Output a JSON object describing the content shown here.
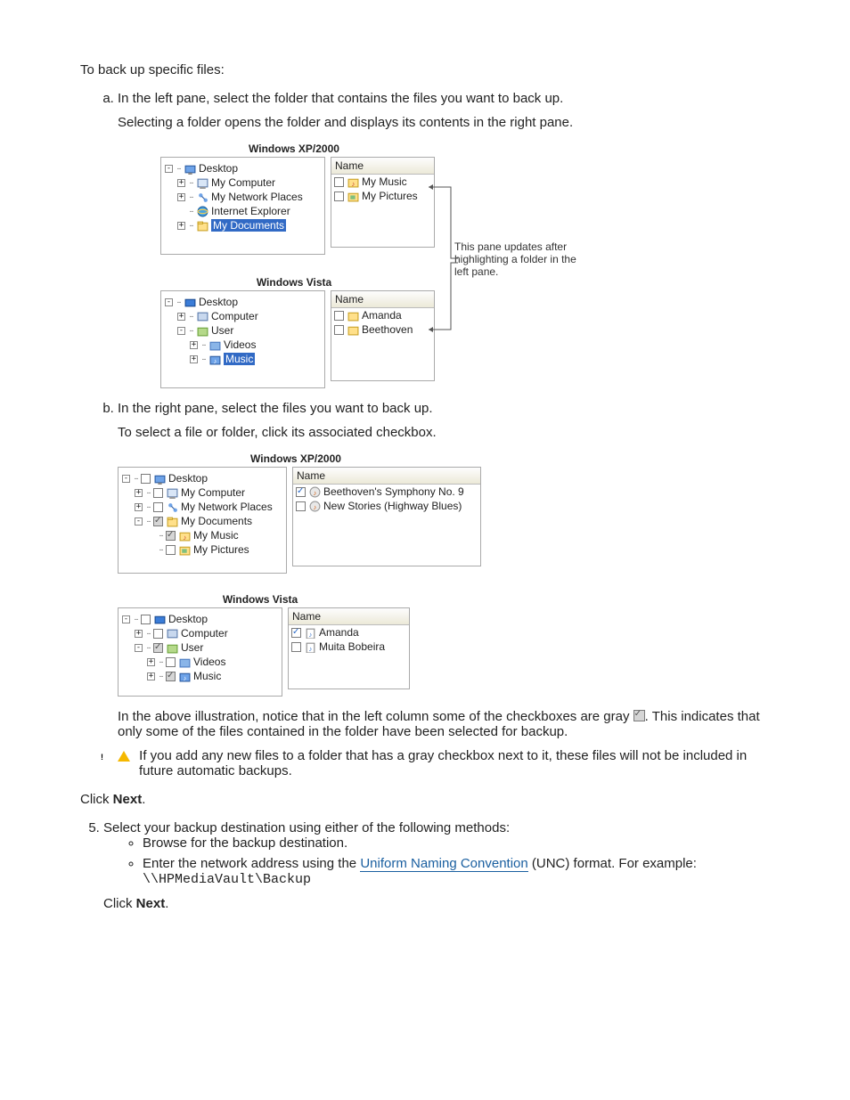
{
  "intro": "To back up specific files:",
  "stepA": {
    "line1": "In the left pane, select the folder that contains the files you want to back up.",
    "line2": "Selecting a folder opens the folder and displays its contents in the right pane."
  },
  "fig1": {
    "titleXP": "Windows XP/2000",
    "titleVista": "Windows Vista",
    "nameHeader": "Name",
    "xp_tree": [
      {
        "exp": "-",
        "icon": "desktop",
        "label": "Desktop",
        "depth": 0
      },
      {
        "exp": "+",
        "icon": "mycomputer",
        "label": "My Computer",
        "depth": 1
      },
      {
        "exp": "+",
        "icon": "network",
        "label": "My Network Places",
        "depth": 1
      },
      {
        "exp": "",
        "icon": "ie",
        "label": "Internet Explorer",
        "depth": 1
      },
      {
        "exp": "+",
        "icon": "mydocs",
        "label": "My Documents",
        "depth": 1,
        "selected": true
      }
    ],
    "xp_list": [
      {
        "icon": "folder-music",
        "label": "My Music"
      },
      {
        "icon": "folder-pic",
        "label": "My Pictures"
      }
    ],
    "vista_tree": [
      {
        "exp": "-",
        "icon": "desktop-v",
        "label": "Desktop",
        "depth": 0
      },
      {
        "exp": "+",
        "icon": "computer-v",
        "label": "Computer",
        "depth": 1
      },
      {
        "exp": "-",
        "icon": "user-v",
        "label": "User",
        "depth": 1
      },
      {
        "exp": "+",
        "icon": "folder-v",
        "label": "Videos",
        "depth": 2
      },
      {
        "exp": "+",
        "icon": "folder-music-v",
        "label": "Music",
        "depth": 2,
        "selected": true
      }
    ],
    "vista_list": [
      {
        "icon": "folder-y",
        "label": "Amanda"
      },
      {
        "icon": "folder-y",
        "label": "Beethoven"
      }
    ],
    "annotation": "This pane updates after highlighting a folder in the left pane."
  },
  "stepB": {
    "line1": "In the right pane, select the files you want to back up.",
    "line2": "To select a file or folder, click its associated checkbox."
  },
  "fig2": {
    "titleXP": "Windows XP/2000",
    "titleVista": "Windows Vista",
    "nameHeader": "Name",
    "xp_tree": [
      {
        "exp": "-",
        "chk": "",
        "icon": "desktop",
        "label": "Desktop",
        "depth": 0
      },
      {
        "exp": "+",
        "chk": "",
        "icon": "mycomputer",
        "label": "My Computer",
        "depth": 1
      },
      {
        "exp": "+",
        "chk": "",
        "icon": "network",
        "label": "My Network Places",
        "depth": 1
      },
      {
        "exp": "-",
        "chk": "gray",
        "icon": "mydocs",
        "label": "My Documents",
        "depth": 1
      },
      {
        "exp": "",
        "chk": "gray",
        "icon": "folder-music",
        "label": "My Music",
        "depth": 2
      },
      {
        "exp": "",
        "chk": "",
        "icon": "folder-pic",
        "label": "My Pictures",
        "depth": 2
      }
    ],
    "xp_list": [
      {
        "chk": "checked",
        "icon": "audio",
        "label": "Beethoven's Symphony No. 9"
      },
      {
        "chk": "",
        "icon": "audio",
        "label": "New Stories (Highway Blues)"
      }
    ],
    "vista_tree": [
      {
        "exp": "-",
        "chk": "",
        "icon": "desktop-v",
        "label": "Desktop",
        "depth": 0
      },
      {
        "exp": "+",
        "chk": "",
        "icon": "computer-v",
        "label": "Computer",
        "depth": 1
      },
      {
        "exp": "-",
        "chk": "gray",
        "icon": "user-v",
        "label": "User",
        "depth": 1
      },
      {
        "exp": "+",
        "chk": "",
        "icon": "folder-v",
        "label": "Videos",
        "depth": 2
      },
      {
        "exp": "+",
        "chk": "gray",
        "icon": "folder-music-v",
        "label": "Music",
        "depth": 2
      }
    ],
    "vista_list": [
      {
        "chk": "checked",
        "icon": "audio-v",
        "label": "Amanda"
      },
      {
        "chk": "",
        "icon": "audio-v",
        "label": "Muita Bobeira"
      }
    ]
  },
  "afterFig2": {
    "para1a": "In the above illustration, notice that in the left column some of the checkboxes are gray ",
    "para1b": ". This indicates that only some of the files contained in the folder have been selected for backup.",
    "warning": "If you add any new files to a folder that has a gray checkbox next to it, these files will not be included in future automatic backups."
  },
  "clickNext1": {
    "pre": "Click ",
    "bold": "Next",
    "post": "."
  },
  "step5": {
    "line": "Select your backup destination using either of the following methods:",
    "optA": "Browse for the backup destination.",
    "optB_pre": "Enter the network address using the ",
    "optB_link": "Uniform Naming Convention",
    "optB_post": " (UNC) format. For example:",
    "optB_code": "\\\\HPMediaVault\\Backup"
  },
  "clickNext2": {
    "pre": "Click ",
    "bold": "Next",
    "post": "."
  },
  "iconSvg": {
    "desktop": "<rect x='1' y='3' width='10' height='7' fill='#6ea3e8' stroke='#2a5aa0'/><rect x='4' y='10' width='4' height='2' fill='#888'/>",
    "mycomputer": "<rect x='1' y='2' width='10' height='8' fill='#d9e6f7' stroke='#5a7aaa'/><rect x='3' y='10' width='6' height='2' fill='#999'/>",
    "network": "<circle cx='4' cy='4' r='2' fill='#6ea3e8'/><circle cx='9' cy='9' r='2' fill='#6ea3e8'/><line x1='5' y1='5' x2='8' y2='8' stroke='#2a5aa0'/>",
    "ie": "<circle cx='6' cy='6' r='5' fill='#4aa3df' stroke='#1a5fa0'/><ellipse cx='6' cy='6' rx='5' ry='2' fill='none' stroke='#ffd24d'/>",
    "mydocs": "<rect x='1' y='3' width='10' height='8' fill='#ffe08a' stroke='#c9a227'/><rect x='1' y='2' width='5' height='2' fill='#ffe08a' stroke='#c9a227'/>",
    "folder-music": "<rect x='1' y='3' width='10' height='8' fill='#ffe08a' stroke='#c9a227'/><text x='6' y='10' font-size='7' text-anchor='middle' fill='#c0392b'>♪</text>",
    "folder-pic": "<rect x='1' y='3' width='10' height='8' fill='#ffe08a' stroke='#c9a227'/><rect x='3' y='5' width='5' height='4' fill='#7fbf7f'/>",
    "desktop-v": "<rect x='1' y='3' width='10' height='7' fill='#3b7dd8' stroke='#1a4a90'/>",
    "computer-v": "<rect x='1' y='2' width='10' height='8' fill='#c8d8ee' stroke='#5a7aaa'/>",
    "user-v": "<rect x='1' y='3' width='10' height='8' fill='#b5d98a' stroke='#6aa23a'/>",
    "folder-v": "<rect x='1' y='3' width='10' height='8' fill='#8ab5e8' stroke='#4a7ac0'/>",
    "folder-music-v": "<rect x='1' y='3' width='10' height='8' fill='#6ea3e8' stroke='#2a5aa0'/><text x='6' y='10' font-size='7' text-anchor='middle' fill='#fff'>♪</text>",
    "folder-y": "<rect x='1' y='3' width='10' height='8' fill='#ffe08a' stroke='#c9a227'/>",
    "audio": "<circle cx='6' cy='6' r='5' fill='#e8e8e8' stroke='#999'/><text x='6' y='9' font-size='7' text-anchor='middle' fill='#d35400'>♪</text>",
    "audio-v": "<rect x='2' y='2' width='8' height='10' fill='#fff' stroke='#888'/><text x='6' y='10' font-size='7' text-anchor='middle' fill='#2a6ac8'>♪</text>"
  }
}
